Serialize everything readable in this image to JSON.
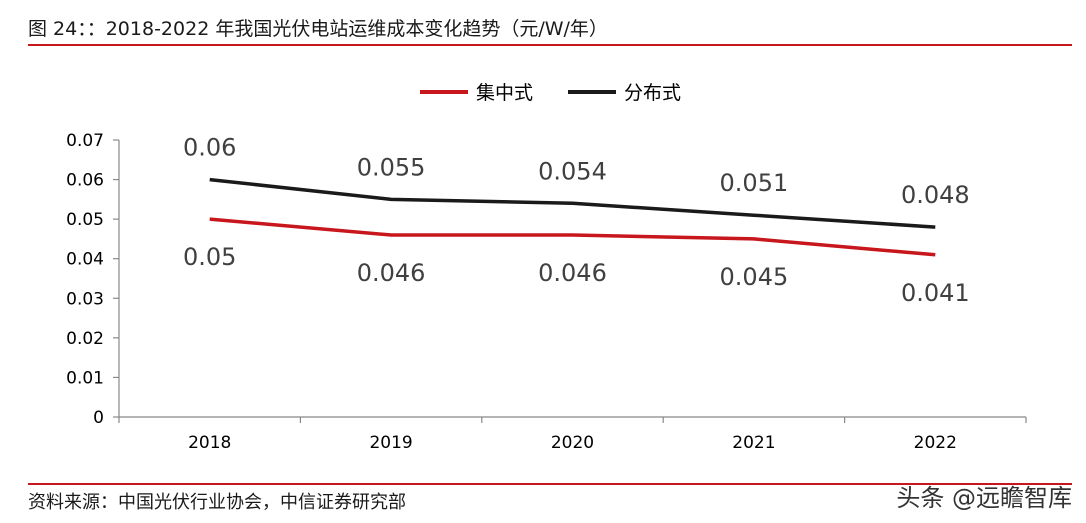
{
  "figure": {
    "title": "图 24：：2018-2022 年我国光伏电站运维成本变化趋势（元/W/年）",
    "source": "资料来源：中国光伏行业协会，中信证券研究部",
    "watermark": "头条 @远瞻智库"
  },
  "chart_data": {
    "type": "line",
    "categories": [
      "2018",
      "2019",
      "2020",
      "2021",
      "2022"
    ],
    "series": [
      {
        "name": "集中式",
        "color": "#c8161d",
        "values": [
          0.05,
          0.046,
          0.046,
          0.045,
          0.041
        ]
      },
      {
        "name": "分布式",
        "color": "#1a1a1a",
        "values": [
          0.06,
          0.055,
          0.054,
          0.051,
          0.048
        ]
      }
    ],
    "ylim": [
      0,
      0.07
    ],
    "yticks": [
      "0",
      "0.01",
      "0.02",
      "0.03",
      "0.04",
      "0.05",
      "0.06",
      "0.07"
    ],
    "legend_position": "top-center",
    "grid": false
  }
}
